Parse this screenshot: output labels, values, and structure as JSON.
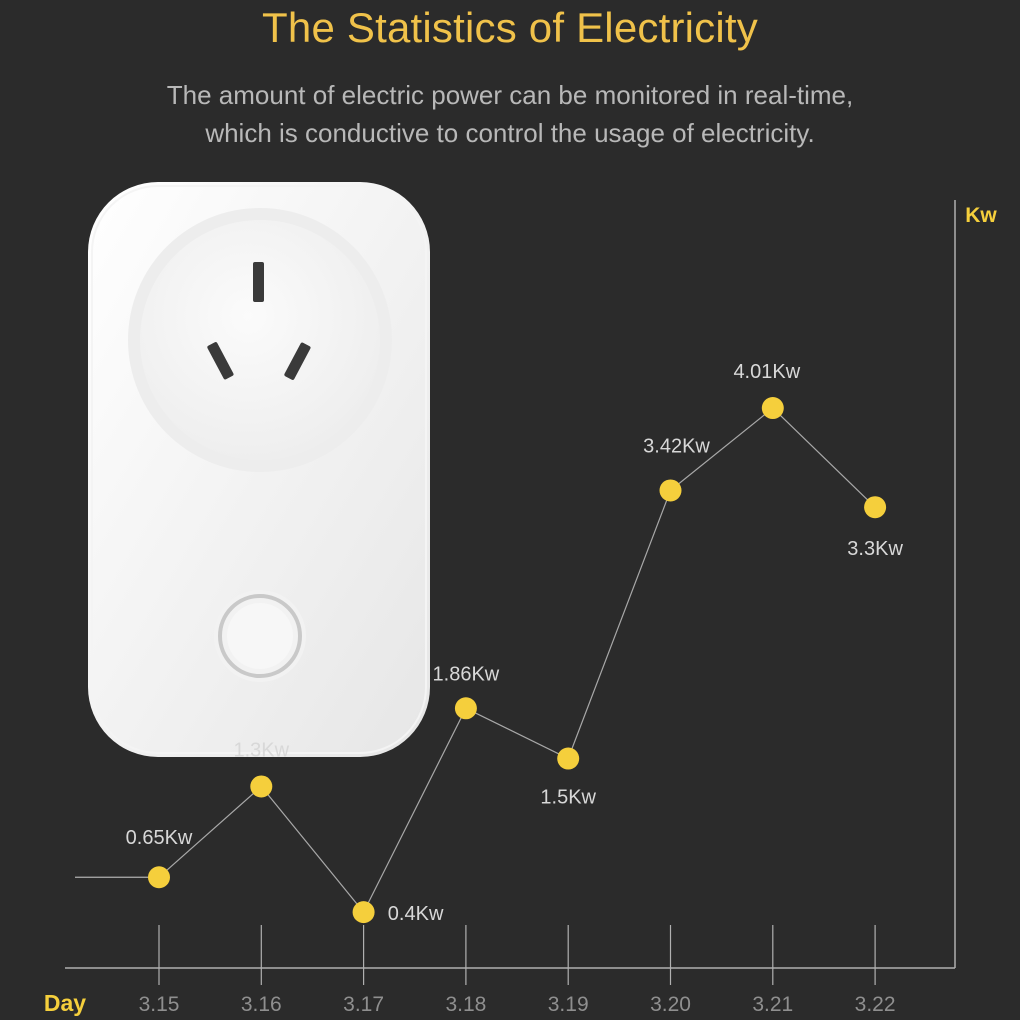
{
  "header": {
    "title": "The Statistics of Electricity",
    "subtitle_lines": [
      "The amount of electric power can be monitored in real-time,",
      "which is conductive to control the usage of electricity."
    ]
  },
  "colors": {
    "background": "#2b2b2b",
    "accent": "#f5cf3c",
    "title": "#f0c24a",
    "text": "#b8b8b8",
    "line": "#b0b0b0"
  },
  "chart_data": {
    "type": "line",
    "xlabel": "Day",
    "ylabel": "Kw",
    "categories": [
      "3.15",
      "3.16",
      "3.17",
      "3.18",
      "3.19",
      "3.20",
      "3.21",
      "3.22"
    ],
    "values": [
      0.65,
      1.3,
      0.4,
      1.86,
      1.5,
      3.42,
      4.01,
      3.3
    ],
    "data_labels": [
      "0.65Kw",
      "1.3Kw",
      "0.4Kw",
      "1.86Kw",
      "1.5Kw",
      "3.42Kw",
      "4.01Kw",
      "3.3Kw"
    ],
    "ylim": [
      0,
      5.5
    ],
    "grid": false,
    "legend": "none"
  },
  "image": {
    "subject": "smart-plug",
    "icon": "smart-plug-icon"
  }
}
